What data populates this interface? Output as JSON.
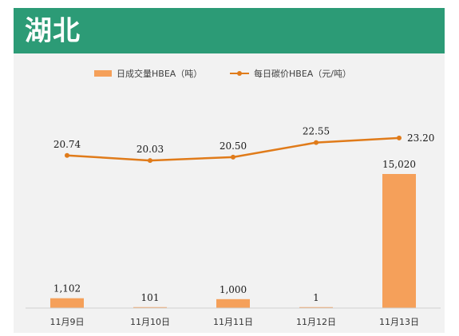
{
  "header": {
    "title": "湖北"
  },
  "colors": {
    "header_bg": "#2c9b76",
    "bar": "#f5a05a",
    "line": "#e07b1a",
    "panel": "#f2f2f2"
  },
  "chart_data": {
    "type": "bar+line",
    "categories": [
      "11月9日",
      "11月10日",
      "11月11日",
      "11月12日",
      "11月13日"
    ],
    "series": [
      {
        "name": "日成交量HBEA（吨）",
        "type": "bar",
        "values": [
          1102,
          101,
          1000,
          1,
          15020
        ],
        "labels": [
          "1,102",
          "101",
          "1,000",
          "1",
          "15,020"
        ]
      },
      {
        "name": "每日碳价HBEA（元/吨）",
        "type": "line",
        "values": [
          20.74,
          20.03,
          20.5,
          22.55,
          23.2
        ],
        "labels": [
          "20.74",
          "20.03",
          "20.50",
          "22.55",
          "23.20"
        ]
      }
    ],
    "legend_position": "top-center",
    "grid": false
  }
}
